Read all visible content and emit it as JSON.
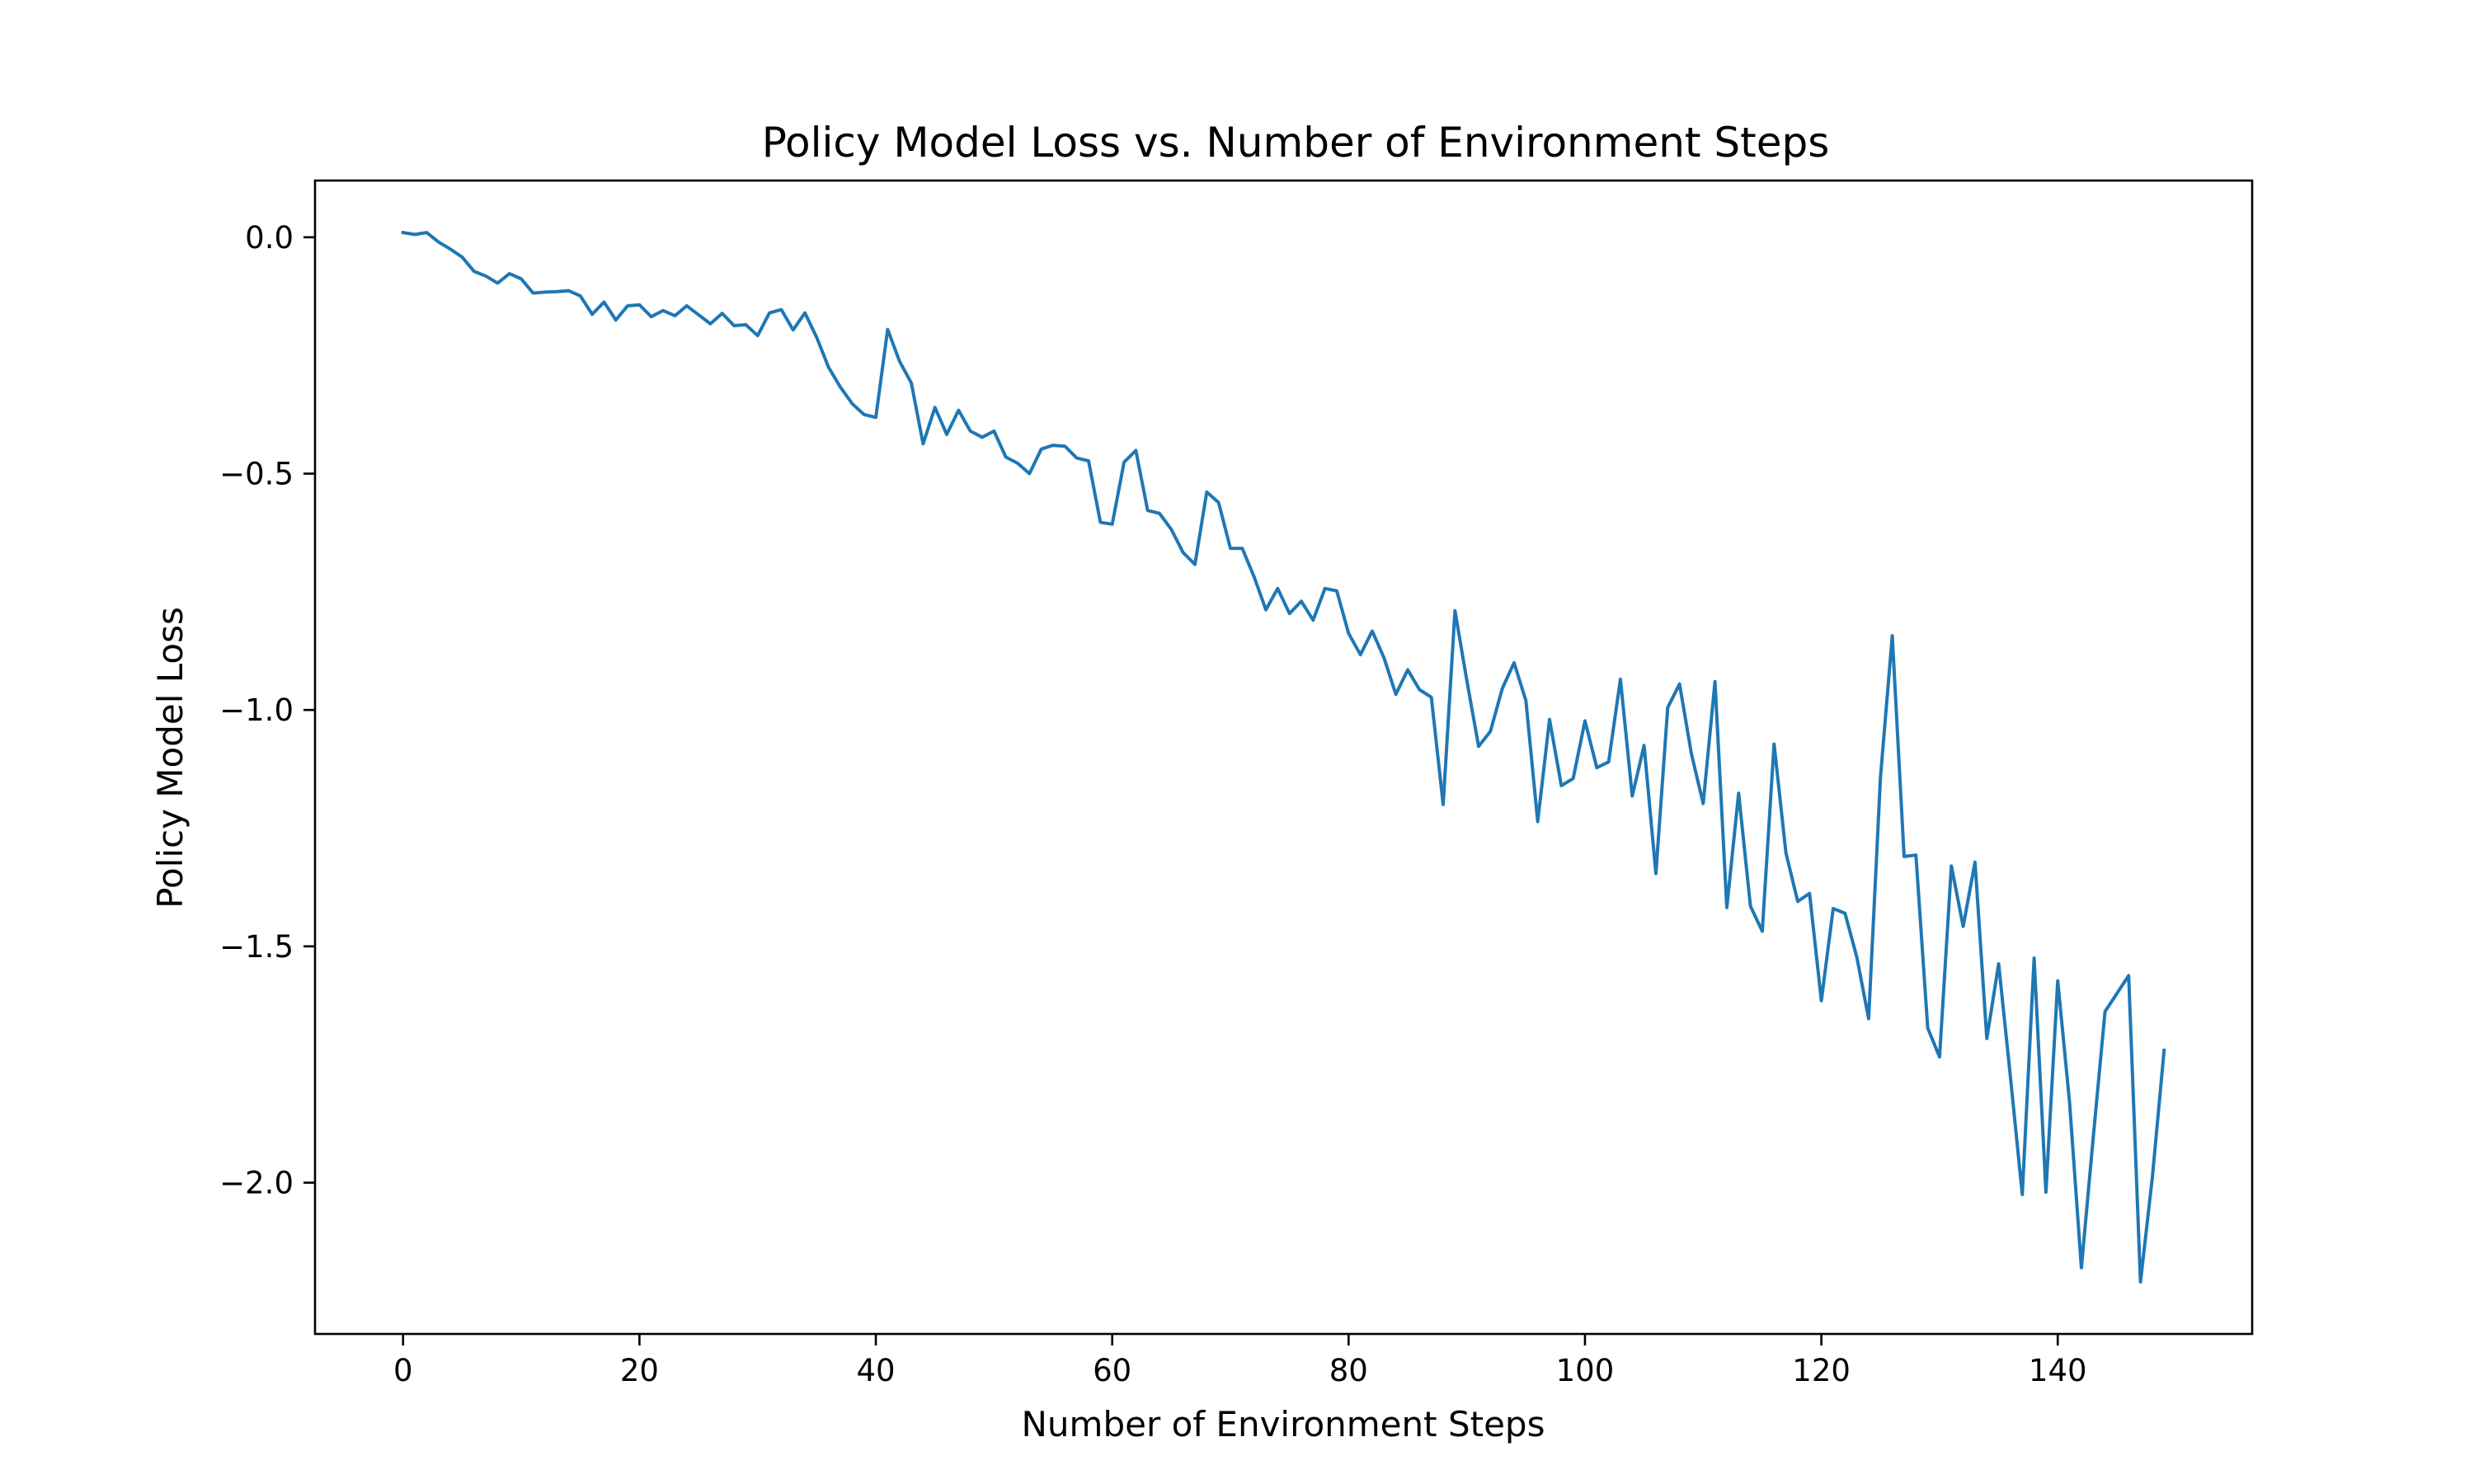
{
  "chart_data": {
    "type": "line",
    "title": "Policy Model Loss vs. Number of Environment Steps",
    "xlabel": "Number of Environment Steps",
    "ylabel": "Policy Model Loss",
    "xlim": [
      -7.45,
      156.45
    ],
    "ylim": [
      -2.32,
      0.12
    ],
    "x_ticks": [
      0,
      20,
      40,
      60,
      80,
      100,
      120,
      140
    ],
    "x_tick_labels": [
      "0",
      "20",
      "40",
      "60",
      "80",
      "100",
      "120",
      "140"
    ],
    "y_ticks": [
      0.0,
      -0.5,
      -1.0,
      -1.5,
      -2.0
    ],
    "y_tick_labels": [
      "0.0",
      "−0.5",
      "−1.0",
      "−1.5",
      "−2.0"
    ],
    "grid": false,
    "colors": {
      "line": "#1f77b4",
      "axes": "#000000",
      "background": "#ffffff"
    },
    "series": [
      {
        "x": [
          0,
          1,
          2,
          3,
          4,
          5,
          6,
          7,
          8,
          9,
          10,
          11,
          12,
          13,
          14,
          15,
          16,
          17,
          18,
          19,
          20,
          21,
          22,
          23,
          24,
          25,
          26,
          27,
          28,
          29,
          30,
          31,
          32,
          33,
          34,
          35,
          36,
          37,
          38,
          39,
          40,
          41,
          42,
          43,
          44,
          45,
          46,
          47,
          48,
          49,
          50,
          51,
          52,
          53,
          54,
          55,
          56,
          57,
          58,
          59,
          60,
          61,
          62,
          63,
          64,
          65,
          66,
          67,
          68,
          69,
          70,
          71,
          72,
          73,
          74,
          75,
          76,
          77,
          78,
          79,
          80,
          81,
          82,
          83,
          84,
          85,
          86,
          87,
          88,
          89,
          90,
          91,
          92,
          93,
          94,
          95,
          96,
          97,
          98,
          99,
          100,
          101,
          102,
          103,
          104,
          105,
          106,
          107,
          108,
          109,
          110,
          111,
          112,
          113,
          114,
          115,
          116,
          117,
          118,
          119,
          120,
          121,
          122,
          123,
          124,
          125,
          126,
          127,
          128,
          129,
          130,
          131,
          132,
          133,
          134,
          135,
          136,
          137,
          138,
          139,
          140,
          141,
          142,
          143,
          144,
          145,
          146,
          147,
          148,
          149
        ],
        "y": [
          0.01,
          0.006,
          0.01,
          -0.01,
          -0.025,
          -0.042,
          -0.072,
          -0.082,
          -0.097,
          -0.077,
          -0.088,
          -0.118,
          -0.116,
          -0.115,
          -0.113,
          -0.124,
          -0.163,
          -0.137,
          -0.175,
          -0.145,
          -0.143,
          -0.168,
          -0.155,
          -0.166,
          -0.145,
          -0.164,
          -0.183,
          -0.161,
          -0.187,
          -0.185,
          -0.208,
          -0.16,
          -0.153,
          -0.196,
          -0.16,
          -0.212,
          -0.275,
          -0.317,
          -0.352,
          -0.375,
          -0.381,
          -0.195,
          -0.262,
          -0.308,
          -0.437,
          -0.36,
          -0.417,
          -0.366,
          -0.41,
          -0.423,
          -0.41,
          -0.465,
          -0.478,
          -0.5,
          -0.448,
          -0.44,
          -0.442,
          -0.467,
          -0.473,
          -0.603,
          -0.607,
          -0.476,
          -0.451,
          -0.578,
          -0.584,
          -0.618,
          -0.667,
          -0.692,
          -0.539,
          -0.561,
          -0.658,
          -0.658,
          -0.718,
          -0.788,
          -0.743,
          -0.796,
          -0.77,
          -0.81,
          -0.743,
          -0.748,
          -0.838,
          -0.883,
          -0.833,
          -0.89,
          -0.967,
          -0.915,
          -0.957,
          -0.973,
          -1.2,
          -0.79,
          -0.937,
          -1.077,
          -1.045,
          -0.955,
          -0.9,
          -0.98,
          -1.236,
          -1.02,
          -1.16,
          -1.145,
          -1.023,
          -1.122,
          -1.11,
          -0.935,
          -1.182,
          -1.075,
          -1.346,
          -0.995,
          -0.945,
          -1.092,
          -1.198,
          -0.94,
          -1.418,
          -1.176,
          -1.415,
          -1.468,
          -1.072,
          -1.302,
          -1.405,
          -1.388,
          -1.615,
          -1.42,
          -1.43,
          -1.523,
          -1.653,
          -1.143,
          -0.843,
          -1.31,
          -1.307,
          -1.673,
          -1.734,
          -1.33,
          -1.458,
          -1.322,
          -1.695,
          -1.537,
          -1.777,
          -2.025,
          -1.525,
          -2.02,
          -1.573,
          -1.83,
          -2.18,
          -1.905,
          -1.638,
          -1.6,
          -1.562,
          -2.21,
          -1.99,
          -1.72
        ]
      }
    ]
  }
}
